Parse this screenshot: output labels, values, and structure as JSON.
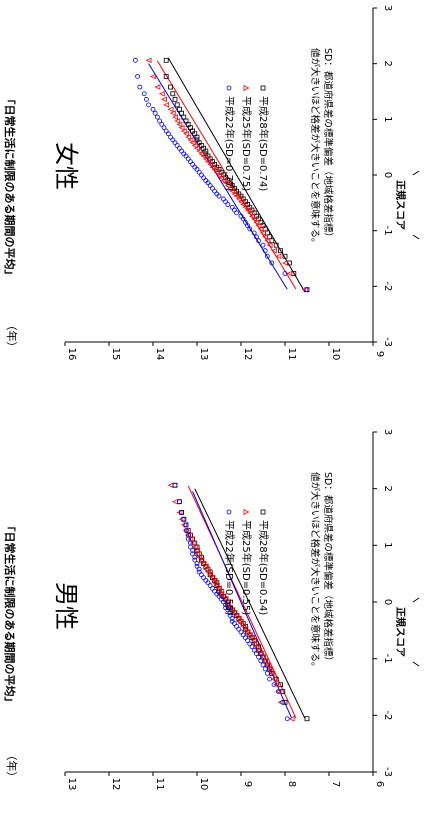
{
  "chart_data": [
    {
      "type": "scatter",
      "title": "男性",
      "xlabel": "正規スコア",
      "ylabel": "「日常生活に制限のある期間の平均」",
      "y_unit": "（年）",
      "xlim": [
        -3,
        3
      ],
      "ylim": [
        6,
        13
      ],
      "x_ticks": [
        "-3",
        "-2",
        "-1",
        "0",
        "1",
        "2",
        "3"
      ],
      "y_ticks": [
        "6",
        "7",
        "8",
        "9",
        "10",
        "11",
        "12",
        "13"
      ],
      "note": [
        "SD：都道府県差の標準偏差（地域格差指標）",
        "値が大きいほど格差が大きいことを意味する。"
      ],
      "series": [
        {
          "name": "平成28年(SD=0.54)",
          "marker": "square",
          "color": "#000000",
          "fit": {
            "x": [
              -2.05,
              2.0
            ],
            "y": [
              7.55,
              10.05
            ]
          },
          "x": [
            -2.06,
            -1.77,
            -1.58,
            -1.46,
            -1.36,
            -1.26,
            -1.18,
            -1.11,
            -1.04,
            -0.97,
            -0.91,
            -0.85,
            -0.79,
            -0.74,
            -0.68,
            -0.63,
            -0.58,
            -0.53,
            -0.48,
            -0.43,
            -0.38,
            -0.34,
            -0.29,
            -0.24,
            -0.19,
            -0.14,
            -0.1,
            -0.05,
            0.0,
            0.05,
            0.1,
            0.14,
            0.19,
            0.24,
            0.29,
            0.34,
            0.38,
            0.43,
            0.48,
            0.53,
            0.58,
            0.63,
            0.68,
            0.74,
            0.79,
            0.85,
            0.91,
            0.97,
            1.04,
            1.11,
            1.18,
            1.26,
            1.36,
            1.46,
            1.58,
            1.77,
            2.06
          ],
          "y": [
            7.5,
            8.0,
            8.05,
            8.1,
            8.2,
            8.3,
            8.35,
            8.4,
            8.45,
            8.5,
            8.55,
            8.6,
            8.6,
            8.65,
            8.7,
            8.75,
            8.8,
            8.85,
            8.9,
            8.9,
            8.95,
            9.0,
            9.05,
            9.1,
            9.15,
            9.2,
            9.25,
            9.3,
            9.3,
            9.35,
            9.4,
            9.45,
            9.5,
            9.5,
            9.55,
            9.55,
            9.6,
            9.65,
            9.7,
            9.7,
            9.75,
            9.8,
            9.85,
            9.9,
            9.9,
            9.95,
            10.0,
            10.0,
            10.05,
            10.1,
            10.15,
            10.2,
            10.25,
            10.3,
            10.35,
            10.4,
            10.5
          ]
        },
        {
          "name": "平成25年(SD=0.55)",
          "marker": "triangle",
          "color": "#ff0000",
          "fit": {
            "x": [
              -2.05,
              2.05
            ],
            "y": [
              7.75,
              10.2
            ]
          },
          "x": [
            -2.06,
            -1.77,
            -1.58,
            -1.46,
            -1.36,
            -1.26,
            -1.18,
            -1.11,
            -1.04,
            -0.97,
            -0.91,
            -0.85,
            -0.79,
            -0.74,
            -0.68,
            -0.63,
            -0.58,
            -0.53,
            -0.48,
            -0.43,
            -0.38,
            -0.34,
            -0.29,
            -0.24,
            -0.19,
            -0.14,
            -0.1,
            -0.05,
            0.0,
            0.05,
            0.1,
            0.14,
            0.19,
            0.24,
            0.29,
            0.34,
            0.38,
            0.43,
            0.48,
            0.53,
            0.58,
            0.63,
            0.68,
            0.74,
            0.79,
            0.85,
            0.91,
            0.97,
            1.04,
            1.11,
            1.18,
            1.26,
            1.36,
            1.46,
            1.58,
            1.77,
            2.06
          ],
          "y": [
            7.85,
            8.1,
            8.15,
            8.2,
            8.25,
            8.3,
            8.35,
            8.4,
            8.45,
            8.5,
            8.55,
            8.6,
            8.65,
            8.7,
            8.7,
            8.75,
            8.8,
            8.85,
            8.9,
            8.95,
            9.0,
            9.05,
            9.05,
            9.1,
            9.15,
            9.2,
            9.25,
            9.3,
            9.3,
            9.35,
            9.4,
            9.45,
            9.45,
            9.5,
            9.55,
            9.6,
            9.6,
            9.65,
            9.7,
            9.75,
            9.8,
            9.8,
            9.85,
            9.9,
            9.95,
            10.0,
            10.0,
            10.05,
            10.1,
            10.15,
            10.2,
            10.25,
            10.3,
            10.35,
            10.4,
            10.5,
            10.6
          ]
        },
        {
          "name": "平成22年(SD=0.55)",
          "marker": "circle",
          "color": "#0000ff",
          "fit": {
            "x": [
              -2.05,
              1.95
            ],
            "y": [
              7.85,
              10.1
            ]
          },
          "x": [
            -2.06,
            -1.77,
            -1.58,
            -1.46,
            -1.36,
            -1.26,
            -1.18,
            -1.11,
            -1.04,
            -0.97,
            -0.91,
            -0.85,
            -0.79,
            -0.74,
            -0.68,
            -0.63,
            -0.58,
            -0.53,
            -0.48,
            -0.43,
            -0.38,
            -0.34,
            -0.29,
            -0.24,
            -0.19,
            -0.14,
            -0.1,
            -0.05,
            0.0,
            0.05,
            0.1,
            0.14,
            0.19,
            0.24,
            0.29,
            0.34,
            0.38,
            0.43,
            0.48,
            0.53,
            0.58,
            0.63,
            0.68,
            0.74,
            0.79,
            0.85,
            0.91,
            0.97,
            1.04,
            1.11,
            1.18,
            1.26,
            1.36,
            1.46,
            1.58,
            1.77,
            2.06
          ],
          "y": [
            7.95,
            8.05,
            8.15,
            8.25,
            8.35,
            8.4,
            8.45,
            8.5,
            8.55,
            8.6,
            8.65,
            8.7,
            8.75,
            8.8,
            8.85,
            8.9,
            8.95,
            9.0,
            9.05,
            9.1,
            9.15,
            9.2,
            9.2,
            9.25,
            9.25,
            9.3,
            9.35,
            9.35,
            9.4,
            9.45,
            9.5,
            9.55,
            9.6,
            9.65,
            9.7,
            9.75,
            9.8,
            9.85,
            9.9,
            9.95,
            9.95,
            10.0,
            10.0,
            10.05,
            10.05,
            10.1,
            10.1,
            10.15,
            10.15,
            10.2,
            10.2,
            10.25,
            10.25,
            10.3,
            10.35,
            10.4,
            10.5
          ]
        }
      ]
    },
    {
      "type": "scatter",
      "title": "女性",
      "xlabel": "正規スコア",
      "ylabel": "「日常生活に制限のある期間の平均」",
      "y_unit": "（年）",
      "xlim": [
        -3,
        3
      ],
      "ylim": [
        9,
        16
      ],
      "x_ticks": [
        "-3",
        "-2",
        "-1",
        "0",
        "1",
        "2",
        "3"
      ],
      "y_ticks": [
        "9",
        "10",
        "11",
        "12",
        "13",
        "14",
        "15",
        "16"
      ],
      "note": [
        "SD：都道府県差の標準偏差（地域格差指標）",
        "値が大きいほど格差が大きいことを意味する。"
      ],
      "series": [
        {
          "name": "平成28年(SD=0.74)",
          "marker": "square",
          "color": "#000000",
          "fit": {
            "x": [
              -2.1,
              2.1
            ],
            "y": [
              10.55,
              13.65
            ]
          },
          "x": [
            -2.06,
            -1.77,
            -1.58,
            -1.46,
            -1.36,
            -1.26,
            -1.18,
            -1.11,
            -1.04,
            -0.97,
            -0.91,
            -0.85,
            -0.79,
            -0.74,
            -0.68,
            -0.63,
            -0.58,
            -0.53,
            -0.48,
            -0.43,
            -0.38,
            -0.34,
            -0.29,
            -0.24,
            -0.19,
            -0.14,
            -0.1,
            -0.05,
            0.0,
            0.05,
            0.1,
            0.14,
            0.19,
            0.24,
            0.29,
            0.34,
            0.38,
            0.43,
            0.48,
            0.53,
            0.58,
            0.63,
            0.68,
            0.74,
            0.79,
            0.85,
            0.91,
            0.97,
            1.04,
            1.11,
            1.18,
            1.26,
            1.36,
            1.46,
            1.58,
            1.77,
            2.06
          ],
          "y": [
            10.5,
            10.8,
            10.9,
            11.0,
            11.1,
            11.2,
            11.3,
            11.35,
            11.4,
            11.45,
            11.5,
            11.55,
            11.6,
            11.65,
            11.7,
            11.75,
            11.8,
            11.85,
            11.9,
            11.95,
            12.0,
            12.05,
            12.1,
            12.15,
            12.2,
            12.25,
            12.3,
            12.35,
            12.4,
            12.45,
            12.5,
            12.55,
            12.6,
            12.65,
            12.7,
            12.75,
            12.8,
            12.8,
            12.85,
            12.9,
            12.95,
            13.0,
            13.0,
            13.05,
            13.1,
            13.15,
            13.2,
            13.25,
            13.3,
            13.35,
            13.4,
            13.45,
            13.5,
            13.55,
            13.6,
            13.7,
            13.7
          ]
        },
        {
          "name": "平成25年(SD=0.75)",
          "marker": "triangle",
          "color": "#ff0000",
          "fit": {
            "x": [
              -2.05,
              2.05
            ],
            "y": [
              10.75,
              13.9
            ]
          },
          "x": [
            -2.06,
            -1.77,
            -1.58,
            -1.46,
            -1.36,
            -1.26,
            -1.18,
            -1.11,
            -1.04,
            -0.97,
            -0.91,
            -0.85,
            -0.79,
            -0.74,
            -0.68,
            -0.63,
            -0.58,
            -0.53,
            -0.48,
            -0.43,
            -0.38,
            -0.34,
            -0.29,
            -0.24,
            -0.19,
            -0.14,
            -0.1,
            -0.05,
            0.0,
            0.05,
            0.1,
            0.14,
            0.19,
            0.24,
            0.29,
            0.34,
            0.38,
            0.43,
            0.48,
            0.53,
            0.58,
            0.63,
            0.68,
            0.74,
            0.79,
            0.85,
            0.91,
            0.97,
            1.04,
            1.11,
            1.18,
            1.26,
            1.36,
            1.46,
            1.58,
            1.77,
            2.06
          ],
          "y": [
            10.55,
            10.9,
            11.0,
            11.15,
            11.25,
            11.35,
            11.4,
            11.45,
            11.5,
            11.55,
            11.6,
            11.65,
            11.7,
            11.75,
            11.8,
            11.85,
            11.9,
            11.95,
            12.0,
            12.05,
            12.1,
            12.15,
            12.2,
            12.25,
            12.3,
            12.35,
            12.4,
            12.45,
            12.5,
            12.55,
            12.6,
            12.65,
            12.7,
            12.75,
            12.8,
            12.85,
            12.9,
            12.95,
            13.0,
            13.05,
            13.1,
            13.15,
            13.2,
            13.25,
            13.3,
            13.35,
            13.4,
            13.45,
            13.5,
            13.55,
            13.6,
            13.7,
            13.75,
            13.8,
            13.9,
            14.0,
            14.1
          ]
        },
        {
          "name": "平成22年(SD=0.77)",
          "marker": "circle",
          "color": "#0000ff",
          "fit": {
            "x": [
              -2.05,
              2.0
            ],
            "y": [
              10.95,
              14.1
            ]
          },
          "x": [
            -2.06,
            -1.77,
            -1.58,
            -1.46,
            -1.36,
            -1.26,
            -1.18,
            -1.11,
            -1.04,
            -0.97,
            -0.91,
            -0.85,
            -0.79,
            -0.74,
            -0.68,
            -0.63,
            -0.58,
            -0.53,
            -0.48,
            -0.43,
            -0.38,
            -0.34,
            -0.29,
            -0.24,
            -0.19,
            -0.14,
            -0.1,
            -0.05,
            0.0,
            0.05,
            0.1,
            0.14,
            0.19,
            0.24,
            0.29,
            0.34,
            0.38,
            0.43,
            0.48,
            0.53,
            0.58,
            0.63,
            0.68,
            0.74,
            0.79,
            0.85,
            0.91,
            0.97,
            1.04,
            1.11,
            1.18,
            1.26,
            1.36,
            1.46,
            1.58,
            1.77,
            2.06
          ],
          "y": [
            10.5,
            11.0,
            11.3,
            11.4,
            11.45,
            11.5,
            11.6,
            11.65,
            11.7,
            11.8,
            11.85,
            11.9,
            11.95,
            12.0,
            12.1,
            12.15,
            12.2,
            12.3,
            12.35,
            12.4,
            12.5,
            12.55,
            12.6,
            12.65,
            12.7,
            12.75,
            12.8,
            12.85,
            12.9,
            12.95,
            13.0,
            13.05,
            13.1,
            13.15,
            13.2,
            13.25,
            13.3,
            13.35,
            13.4,
            13.45,
            13.5,
            13.55,
            13.6,
            13.65,
            13.7,
            13.75,
            13.8,
            13.85,
            13.9,
            13.95,
            14.0,
            14.1,
            14.15,
            14.2,
            14.3,
            14.35,
            14.4
          ]
        }
      ]
    }
  ]
}
